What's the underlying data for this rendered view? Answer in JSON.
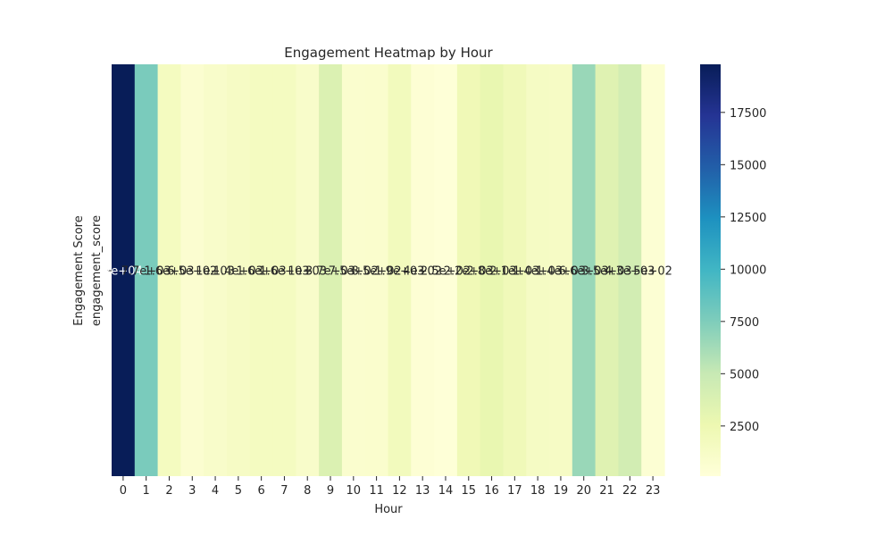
{
  "chart_data": {
    "type": "heatmap",
    "title": "Engagement Heatmap by Hour",
    "xlabel": "Hour",
    "ylabel": "Engagement Score",
    "row_labels": [
      "engagement_score"
    ],
    "x": [
      "0",
      "1",
      "2",
      "3",
      "4",
      "5",
      "6",
      "7",
      "8",
      "9",
      "10",
      "11",
      "12",
      "13",
      "14",
      "15",
      "16",
      "17",
      "18",
      "19",
      "20",
      "21",
      "22",
      "23"
    ],
    "values": [
      19800,
      7700,
      1650,
      650,
      1050,
      1350,
      1600,
      1600,
      1000,
      3700,
      750,
      850,
      1850,
      400,
      250,
      2200,
      2800,
      2100,
      1400,
      1350,
      6600,
      3500,
      4300,
      500
    ],
    "cell_labels": [
      "2e+04",
      "7.7e+03",
      "1.6e+03",
      "6.5e+02",
      "1e+03",
      "1.4e+03",
      "1.6e+03",
      "1.6e+03",
      "1e+03",
      "3.7e+03",
      "7.5e+02",
      "8.5e+02",
      "1.9e+03",
      "4e+02",
      "2.5e+02",
      "2.2e+03",
      "2.8e+03",
      "2.1e+03",
      "1.4e+03",
      "1.4e+03",
      "6.6e+03",
      "3.5e+03",
      "4.3e+03",
      "5e+02"
    ],
    "colormap": "YlGnBu",
    "colorbar": {
      "vmin": 100,
      "vmax": 19800,
      "ticks": [
        2500,
        5000,
        7500,
        10000,
        12500,
        15000,
        17500
      ],
      "tick_labels": [
        "2500",
        "5000",
        "7500",
        "10000",
        "12500",
        "15000",
        "17500"
      ]
    }
  }
}
